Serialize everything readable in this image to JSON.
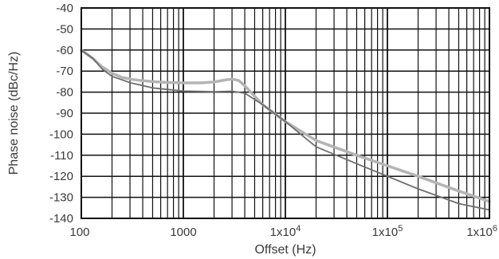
{
  "chart_data": {
    "type": "line",
    "title": "",
    "xlabel": "Offset (Hz)",
    "ylabel": "Phase noise (dBc/Hz)",
    "x_scale": "log",
    "xlim": [
      100,
      1000000
    ],
    "ylim": [
      -140,
      -40
    ],
    "yticks": [
      -40,
      -50,
      -60,
      -70,
      -80,
      -90,
      -100,
      -110,
      -120,
      -130,
      -140
    ],
    "xtick_labels": [
      {
        "value": 100,
        "label": "100"
      },
      {
        "value": 1000,
        "label": "1000"
      },
      {
        "value": 10000,
        "label": "1x10",
        "exp": "4"
      },
      {
        "value": 100000,
        "label": "1x10",
        "exp": "5"
      },
      {
        "value": 1000000,
        "label": "1x10",
        "exp": "6"
      }
    ],
    "grid": true,
    "legend": "none",
    "colors": {
      "light_series": "#b4b4b4",
      "dark_series": "#6e6e6e",
      "grid": "#111111",
      "text": "#3a3a3a"
    },
    "series": [
      {
        "color": "#b4b4b4",
        "x": [
          100,
          130,
          160,
          200,
          250,
          320,
          400,
          500,
          700,
          1000,
          1500,
          2000,
          2500,
          3000,
          3500,
          4000,
          6000,
          10000,
          20000,
          50000,
          100000,
          200000,
          500000,
          1000000
        ],
        "y": [
          -60,
          -64,
          -68,
          -71,
          -73,
          -74,
          -74.6,
          -75,
          -75.4,
          -75.6,
          -75.6,
          -75.2,
          -74.3,
          -73.8,
          -74.5,
          -77,
          -86,
          -94,
          -103,
          -110,
          -115,
          -120,
          -127,
          -132
        ]
      },
      {
        "color": "#6e6e6e",
        "x": [
          100,
          130,
          160,
          200,
          300,
          500,
          1000,
          2000,
          3000,
          4000,
          6000,
          10000,
          20000,
          50000,
          100000,
          200000,
          500000,
          1000000
        ],
        "y": [
          -60,
          -64,
          -69,
          -72.5,
          -75.5,
          -78,
          -79.5,
          -79.8,
          -79.6,
          -80.5,
          -86,
          -94,
          -106,
          -114,
          -120,
          -126,
          -133,
          -136
        ]
      }
    ]
  }
}
